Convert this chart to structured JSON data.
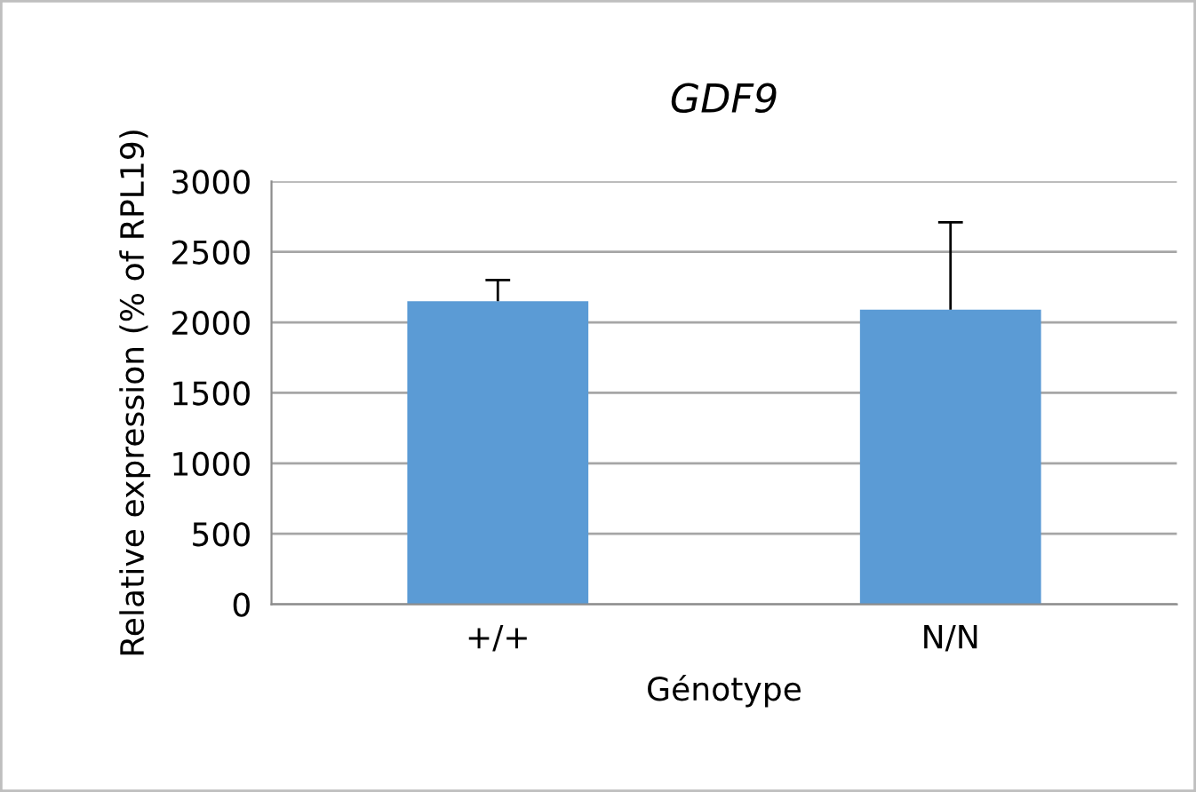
{
  "chart_data": {
    "type": "bar",
    "title": "GDF9",
    "xlabel": "Génotype",
    "ylabel": "Relative expression (% of RPL19)",
    "categories": [
      "+/+",
      "N/N"
    ],
    "values": [
      2150,
      2090
    ],
    "errors": [
      [
        2150,
        2300
      ],
      [
        2090,
        2710
      ]
    ],
    "color": "#5b9bd5",
    "ylim": [
      0,
      3000
    ],
    "yticks": [
      0,
      500,
      1000,
      1500,
      2000,
      2500,
      3000
    ],
    "grid": "y",
    "legend": false
  }
}
